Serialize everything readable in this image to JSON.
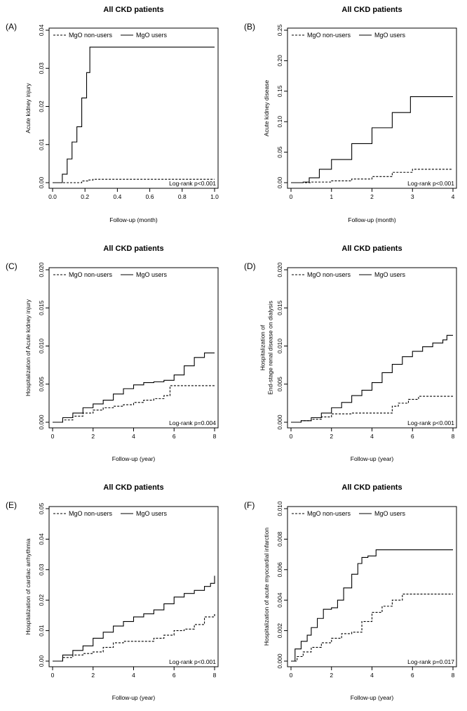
{
  "chart_data": [
    {
      "panel": "(A)",
      "type": "line",
      "title": "All CKD patients",
      "xlabel": "Follow-up (month)",
      "ylabel": "Acute kidney injury",
      "xlim": [
        0,
        1.0
      ],
      "ylim": [
        0,
        0.045
      ],
      "xticks": [
        "0.0",
        "0.2",
        "0.4",
        "0.6",
        "0.8",
        "1.0"
      ],
      "yticks": [
        "0.00",
        "0.01",
        "0.02",
        "0.03",
        "0.04"
      ],
      "annotation": "Log-rank p<0.001",
      "legend_position": "top-left",
      "series": [
        {
          "name": "MgO non-users",
          "style": "dashed",
          "x": [
            0,
            0.15,
            0.18,
            0.22,
            0.25,
            1.0
          ],
          "y": [
            0,
            0,
            0.0005,
            0.0008,
            0.001,
            0.001
          ]
        },
        {
          "name": "MgO users",
          "style": "solid",
          "x": [
            0.03,
            0.06,
            0.09,
            0.12,
            0.15,
            0.18,
            0.21,
            0.23,
            1.0
          ],
          "y": [
            0,
            0.0025,
            0.007,
            0.012,
            0.0165,
            0.025,
            0.0325,
            0.04,
            0.04
          ]
        }
      ]
    },
    {
      "panel": "(B)",
      "type": "line",
      "title": "All CKD patients",
      "xlabel": "Follow-up (month)",
      "ylabel": "Acute kidney disease",
      "xlim": [
        0,
        4
      ],
      "ylim": [
        0,
        0.25
      ],
      "xticks": [
        "0",
        "1",
        "2",
        "3",
        "4"
      ],
      "yticks": [
        "0.00",
        "0.05",
        "0.10",
        "0.15",
        "0.20",
        "0.25"
      ],
      "annotation": "Log-rank p<0.001",
      "legend_position": "top-left",
      "series": [
        {
          "name": "MgO non-users",
          "style": "dashed",
          "x": [
            0,
            0.5,
            1.0,
            1.5,
            2.0,
            2.5,
            3.0,
            4.0
          ],
          "y": [
            0,
            0.001,
            0.003,
            0.006,
            0.01,
            0.017,
            0.022,
            0.022
          ]
        },
        {
          "name": "MgO users",
          "style": "solid",
          "x": [
            0,
            0.3,
            0.45,
            0.7,
            1.0,
            1.5,
            2.0,
            2.5,
            2.95,
            4.0
          ],
          "y": [
            0,
            0.001,
            0.008,
            0.022,
            0.038,
            0.064,
            0.09,
            0.115,
            0.141,
            0.141
          ]
        }
      ]
    },
    {
      "panel": "(C)",
      "type": "line",
      "title": "All CKD patients",
      "xlabel": "Follow-up (year)",
      "ylabel": "Hospitalization of Acute kidney injury",
      "xlim": [
        0,
        8
      ],
      "ylim": [
        0,
        0.02
      ],
      "xticks": [
        "0",
        "2",
        "4",
        "6",
        "8"
      ],
      "yticks": [
        "0.000",
        "0.005",
        "0.010",
        "0.015",
        "0.020"
      ],
      "annotation": "Log-rank p=0.004",
      "legend_position": "top-left",
      "series": [
        {
          "name": "MgO non-users",
          "style": "dashed",
          "x": [
            0,
            0.5,
            1.0,
            1.5,
            2.0,
            2.5,
            3.0,
            3.5,
            4.0,
            4.5,
            5.0,
            5.5,
            5.8,
            6.0,
            8.0
          ],
          "y": [
            0,
            0.0003,
            0.0008,
            0.0012,
            0.0016,
            0.0019,
            0.0021,
            0.0023,
            0.0026,
            0.0029,
            0.0031,
            0.0035,
            0.0048,
            0.0048,
            0.0048
          ]
        },
        {
          "name": "MgO users",
          "style": "solid",
          "x": [
            0,
            0.5,
            1.0,
            1.5,
            2.0,
            2.5,
            3.0,
            3.5,
            4.0,
            4.5,
            5.0,
            5.5,
            6.0,
            6.5,
            7.0,
            7.5,
            8.0
          ],
          "y": [
            0,
            0.0006,
            0.0012,
            0.0019,
            0.0024,
            0.0029,
            0.0037,
            0.0044,
            0.0049,
            0.0052,
            0.0053,
            0.0055,
            0.0062,
            0.0074,
            0.0085,
            0.0091,
            0.0091
          ]
        }
      ]
    },
    {
      "panel": "(D)",
      "type": "line",
      "title": "All CKD patients",
      "xlabel": "Follow-up (year)",
      "ylabel": "Hospitalization of\nEnd-stage renal disease on dialysis",
      "xlim": [
        0,
        8
      ],
      "ylim": [
        0,
        0.02
      ],
      "xticks": [
        "0",
        "2",
        "4",
        "6",
        "8"
      ],
      "yticks": [
        "0.000",
        "0.005",
        "0.010",
        "0.015",
        "0.020"
      ],
      "annotation": "Log-rank p<0.001",
      "legend_position": "top-left",
      "series": [
        {
          "name": "MgO non-users",
          "style": "dashed",
          "x": [
            0,
            0.5,
            1.0,
            1.5,
            2.0,
            3.0,
            4.0,
            4.8,
            5.0,
            5.3,
            5.8,
            6.3,
            8.0
          ],
          "y": [
            0,
            0.0002,
            0.0004,
            0.0007,
            0.0011,
            0.0012,
            0.0012,
            0.0012,
            0.0021,
            0.0025,
            0.003,
            0.0034,
            0.0034
          ]
        },
        {
          "name": "MgO users",
          "style": "solid",
          "x": [
            0,
            0.5,
            1.0,
            1.5,
            2.0,
            2.5,
            3.0,
            3.5,
            4.0,
            4.5,
            5.0,
            5.5,
            6.0,
            6.5,
            7.0,
            7.5,
            7.7,
            8.0
          ],
          "y": [
            0,
            0.0002,
            0.0006,
            0.0012,
            0.0019,
            0.0026,
            0.0035,
            0.0042,
            0.0052,
            0.0065,
            0.0076,
            0.0086,
            0.0093,
            0.0099,
            0.0104,
            0.0108,
            0.0114,
            0.0114
          ]
        }
      ]
    },
    {
      "panel": "(E)",
      "type": "line",
      "title": "All CKD patients",
      "xlabel": "Follow-up (year)",
      "ylabel": "Hospitalization of cardiac arrhythmia",
      "xlim": [
        0,
        8
      ],
      "ylim": [
        0,
        0.05
      ],
      "xticks": [
        "0",
        "2",
        "4",
        "6",
        "8"
      ],
      "yticks": [
        "0.00",
        "0.01",
        "0.02",
        "0.03",
        "0.04",
        "0.05"
      ],
      "annotation": "Log-rank p<0.001",
      "legend_position": "top-left",
      "series": [
        {
          "name": "MgO non-users",
          "style": "dashed",
          "x": [
            0,
            0.5,
            1.0,
            1.5,
            2.0,
            2.5,
            3.0,
            3.5,
            4.0,
            4.5,
            5.0,
            5.5,
            6.0,
            6.5,
            7.0,
            7.5,
            8.0
          ],
          "y": [
            0,
            0.0012,
            0.002,
            0.0025,
            0.003,
            0.0045,
            0.006,
            0.0065,
            0.0065,
            0.0065,
            0.0075,
            0.0085,
            0.01,
            0.0105,
            0.012,
            0.0145,
            0.0155
          ]
        },
        {
          "name": "MgO users",
          "style": "solid",
          "x": [
            0,
            0.5,
            1.0,
            1.5,
            2.0,
            2.5,
            3.0,
            3.5,
            4.0,
            4.5,
            5.0,
            5.5,
            6.0,
            6.5,
            7.0,
            7.5,
            7.8,
            8.0
          ],
          "y": [
            0,
            0.002,
            0.0035,
            0.005,
            0.0075,
            0.0095,
            0.0115,
            0.013,
            0.0145,
            0.0155,
            0.0168,
            0.0188,
            0.021,
            0.0222,
            0.0232,
            0.0245,
            0.0255,
            0.028
          ]
        }
      ]
    },
    {
      "panel": "(F)",
      "type": "line",
      "title": "All CKD patients",
      "xlabel": "Follow-up (year)",
      "ylabel": "Hospitalization of acute myocardial infarction",
      "xlim": [
        0,
        8
      ],
      "ylim": [
        0,
        0.01
      ],
      "xticks": [
        "0",
        "2",
        "4",
        "6",
        "8"
      ],
      "yticks": [
        "0.000",
        "0.002",
        "0.004",
        "0.006",
        "0.008",
        "0.010"
      ],
      "annotation": "Log-rank p=0.017",
      "legend_position": "top-left",
      "series": [
        {
          "name": "MgO non-users",
          "style": "dashed",
          "x": [
            0,
            0.3,
            0.6,
            1.0,
            1.5,
            2.0,
            2.5,
            3.0,
            3.5,
            4.0,
            4.5,
            5.0,
            5.5,
            8.0
          ],
          "y": [
            0,
            0.0003,
            0.0006,
            0.0009,
            0.0012,
            0.0015,
            0.0018,
            0.0019,
            0.0026,
            0.0032,
            0.0036,
            0.004,
            0.0044,
            0.0044
          ]
        },
        {
          "name": "MgO users",
          "style": "solid",
          "x": [
            0,
            0.2,
            0.5,
            0.8,
            1.0,
            1.3,
            1.6,
            2.0,
            2.3,
            2.6,
            3.0,
            3.3,
            3.5,
            3.8,
            4.2,
            8.0
          ],
          "y": [
            0,
            0.0008,
            0.0013,
            0.0017,
            0.0022,
            0.0028,
            0.0034,
            0.0035,
            0.004,
            0.0048,
            0.0057,
            0.0064,
            0.0068,
            0.0069,
            0.0073,
            0.0073
          ]
        }
      ]
    }
  ]
}
